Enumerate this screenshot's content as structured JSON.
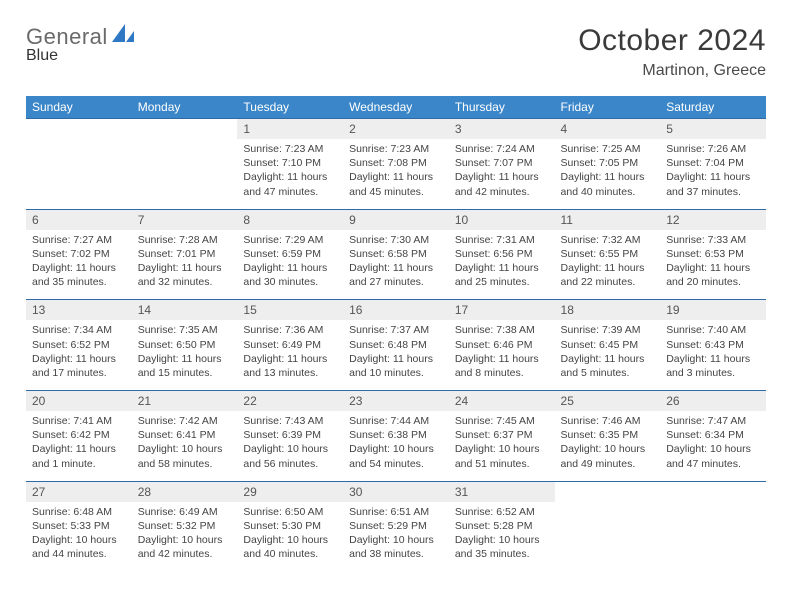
{
  "logo": {
    "word1": "General",
    "word2": "Blue"
  },
  "title": "October 2024",
  "location": "Martinon, Greece",
  "colors": {
    "header_bg": "#3b86c8",
    "header_text": "#ffffff",
    "daynum_bg": "#eeeeee",
    "rule": "#2f6aa5",
    "logo_accent": "#2f78c4"
  },
  "dow": [
    "Sunday",
    "Monday",
    "Tuesday",
    "Wednesday",
    "Thursday",
    "Friday",
    "Saturday"
  ],
  "weeks": [
    {
      "nums": [
        "",
        "",
        "1",
        "2",
        "3",
        "4",
        "5"
      ],
      "cells": [
        null,
        null,
        {
          "sr": "7:23 AM",
          "ss": "7:10 PM",
          "dl": "11 hours and 47 minutes."
        },
        {
          "sr": "7:23 AM",
          "ss": "7:08 PM",
          "dl": "11 hours and 45 minutes."
        },
        {
          "sr": "7:24 AM",
          "ss": "7:07 PM",
          "dl": "11 hours and 42 minutes."
        },
        {
          "sr": "7:25 AM",
          "ss": "7:05 PM",
          "dl": "11 hours and 40 minutes."
        },
        {
          "sr": "7:26 AM",
          "ss": "7:04 PM",
          "dl": "11 hours and 37 minutes."
        }
      ]
    },
    {
      "nums": [
        "6",
        "7",
        "8",
        "9",
        "10",
        "11",
        "12"
      ],
      "cells": [
        {
          "sr": "7:27 AM",
          "ss": "7:02 PM",
          "dl": "11 hours and 35 minutes."
        },
        {
          "sr": "7:28 AM",
          "ss": "7:01 PM",
          "dl": "11 hours and 32 minutes."
        },
        {
          "sr": "7:29 AM",
          "ss": "6:59 PM",
          "dl": "11 hours and 30 minutes."
        },
        {
          "sr": "7:30 AM",
          "ss": "6:58 PM",
          "dl": "11 hours and 27 minutes."
        },
        {
          "sr": "7:31 AM",
          "ss": "6:56 PM",
          "dl": "11 hours and 25 minutes."
        },
        {
          "sr": "7:32 AM",
          "ss": "6:55 PM",
          "dl": "11 hours and 22 minutes."
        },
        {
          "sr": "7:33 AM",
          "ss": "6:53 PM",
          "dl": "11 hours and 20 minutes."
        }
      ]
    },
    {
      "nums": [
        "13",
        "14",
        "15",
        "16",
        "17",
        "18",
        "19"
      ],
      "cells": [
        {
          "sr": "7:34 AM",
          "ss": "6:52 PM",
          "dl": "11 hours and 17 minutes."
        },
        {
          "sr": "7:35 AM",
          "ss": "6:50 PM",
          "dl": "11 hours and 15 minutes."
        },
        {
          "sr": "7:36 AM",
          "ss": "6:49 PM",
          "dl": "11 hours and 13 minutes."
        },
        {
          "sr": "7:37 AM",
          "ss": "6:48 PM",
          "dl": "11 hours and 10 minutes."
        },
        {
          "sr": "7:38 AM",
          "ss": "6:46 PM",
          "dl": "11 hours and 8 minutes."
        },
        {
          "sr": "7:39 AM",
          "ss": "6:45 PM",
          "dl": "11 hours and 5 minutes."
        },
        {
          "sr": "7:40 AM",
          "ss": "6:43 PM",
          "dl": "11 hours and 3 minutes."
        }
      ]
    },
    {
      "nums": [
        "20",
        "21",
        "22",
        "23",
        "24",
        "25",
        "26"
      ],
      "cells": [
        {
          "sr": "7:41 AM",
          "ss": "6:42 PM",
          "dl": "11 hours and 1 minute."
        },
        {
          "sr": "7:42 AM",
          "ss": "6:41 PM",
          "dl": "10 hours and 58 minutes."
        },
        {
          "sr": "7:43 AM",
          "ss": "6:39 PM",
          "dl": "10 hours and 56 minutes."
        },
        {
          "sr": "7:44 AM",
          "ss": "6:38 PM",
          "dl": "10 hours and 54 minutes."
        },
        {
          "sr": "7:45 AM",
          "ss": "6:37 PM",
          "dl": "10 hours and 51 minutes."
        },
        {
          "sr": "7:46 AM",
          "ss": "6:35 PM",
          "dl": "10 hours and 49 minutes."
        },
        {
          "sr": "7:47 AM",
          "ss": "6:34 PM",
          "dl": "10 hours and 47 minutes."
        }
      ]
    },
    {
      "nums": [
        "27",
        "28",
        "29",
        "30",
        "31",
        "",
        ""
      ],
      "cells": [
        {
          "sr": "6:48 AM",
          "ss": "5:33 PM",
          "dl": "10 hours and 44 minutes."
        },
        {
          "sr": "6:49 AM",
          "ss": "5:32 PM",
          "dl": "10 hours and 42 minutes."
        },
        {
          "sr": "6:50 AM",
          "ss": "5:30 PM",
          "dl": "10 hours and 40 minutes."
        },
        {
          "sr": "6:51 AM",
          "ss": "5:29 PM",
          "dl": "10 hours and 38 minutes."
        },
        {
          "sr": "6:52 AM",
          "ss": "5:28 PM",
          "dl": "10 hours and 35 minutes."
        },
        null,
        null
      ]
    }
  ],
  "labels": {
    "sunrise": "Sunrise:",
    "sunset": "Sunset:",
    "daylight": "Daylight:"
  }
}
